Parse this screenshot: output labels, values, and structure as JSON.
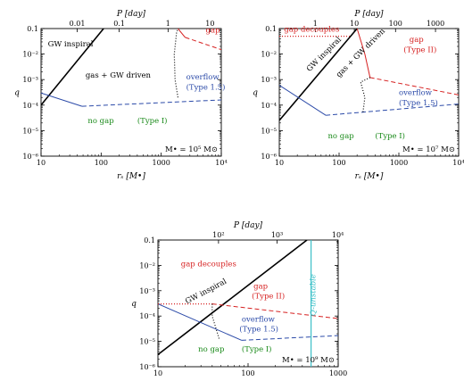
{
  "colors": {
    "axis": "#000000",
    "gw": "#000000",
    "typeI": "#2b4aa8",
    "gap": "#d62020",
    "label_green": "#1a8a1a",
    "q_unstable": "#3cc0c8"
  },
  "chart_data": [
    {
      "type": "line",
      "mass_label": "M• = 10⁵ M⊙",
      "xlabel": "rₛ  [M•]",
      "ylabel": "q",
      "top_axis_label": "P  [day]",
      "xlog": true,
      "ylog": true,
      "xlim": [
        10,
        10000
      ],
      "ylim": [
        1e-06,
        0.1
      ],
      "x_ticks": [
        10,
        100,
        1000,
        10000
      ],
      "x_tick_labels": [
        "10",
        "100",
        "1000",
        "10⁴"
      ],
      "y_ticks": [
        1e-06,
        1e-05,
        0.0001,
        0.001,
        0.01,
        0.1
      ],
      "y_tick_labels": [
        "10⁻⁶",
        "10⁻⁵",
        "10⁻⁴",
        "10⁻³",
        "10⁻²",
        "0.1"
      ],
      "top_ticks": [
        {
          "label": "0.01",
          "x": 40
        },
        {
          "label": "0.1",
          "x": 200
        },
        {
          "label": "1",
          "x": 1300
        },
        {
          "label": "10",
          "x": 6500
        }
      ],
      "series": [
        {
          "style": "gw",
          "points": [
            [
              10,
              0.0001
            ],
            [
              110,
              0.1
            ]
          ]
        },
        {
          "style": "blue-solid",
          "points": [
            [
              10,
              0.0003
            ],
            [
              48,
              9e-05
            ]
          ]
        },
        {
          "style": "blue-dashed",
          "points": [
            [
              48,
              9e-05
            ],
            [
              10000,
              0.00016
            ]
          ]
        },
        {
          "style": "black-dotted",
          "points": [
            [
              1900,
              0.0002
            ],
            [
              1700,
              0.001
            ],
            [
              1650,
              0.01
            ],
            [
              1800,
              0.07
            ],
            [
              1900,
              0.1
            ]
          ]
        },
        {
          "style": "red-solid",
          "points": [
            [
              1900,
              0.1
            ],
            [
              2500,
              0.045
            ]
          ]
        },
        {
          "style": "red-dashed",
          "points": [
            [
              2500,
              0.045
            ],
            [
              10000,
              0.015
            ]
          ]
        }
      ],
      "annotations": [
        {
          "text": "GW inspiral",
          "x": 13,
          "y": 0.02,
          "color": "black"
        },
        {
          "text": "gas + GW driven",
          "x": 55,
          "y": 0.0012,
          "color": "black"
        },
        {
          "text": "overflow",
          "x": 2600,
          "y": 0.001,
          "color": "blue"
        },
        {
          "text": "(Type 1.5)",
          "x": 2600,
          "y": 0.0004,
          "color": "blue"
        },
        {
          "text": "gap",
          "x": 5500,
          "y": 0.07,
          "color": "red"
        },
        {
          "text": "no gap",
          "x": 60,
          "y": 2e-05,
          "color": "green"
        },
        {
          "text": "(Type I)",
          "x": 400,
          "y": 2e-05,
          "color": "green"
        }
      ]
    },
    {
      "type": "line",
      "mass_label": "M• = 10⁷ M⊙",
      "xlabel": "rₛ  [M•]",
      "ylabel": "q",
      "top_axis_label": "P  [day]",
      "xlog": true,
      "ylog": true,
      "xlim": [
        10,
        10000
      ],
      "ylim": [
        1e-06,
        0.1
      ],
      "x_ticks": [
        10,
        100,
        1000,
        10000
      ],
      "x_tick_labels": [
        "10",
        "100",
        "1000",
        "10⁴"
      ],
      "y_ticks": [
        1e-06,
        1e-05,
        0.0001,
        0.001,
        0.01,
        0.1
      ],
      "y_tick_labels": [
        "10⁻⁶",
        "10⁻⁵",
        "10⁻⁴",
        "10⁻³",
        "10⁻²",
        "0.1"
      ],
      "top_ticks": [
        {
          "label": "1",
          "x": 40
        },
        {
          "label": "10",
          "x": 180
        },
        {
          "label": "100",
          "x": 880
        },
        {
          "label": "1000",
          "x": 4100
        }
      ],
      "series": [
        {
          "style": "gw",
          "points": [
            [
              10,
              2.5e-05
            ],
            [
              200,
              0.1
            ]
          ]
        },
        {
          "style": "blue-solid",
          "points": [
            [
              10,
              0.0006
            ],
            [
              60,
              4e-05
            ]
          ]
        },
        {
          "style": "blue-dashed",
          "points": [
            [
              60,
              4e-05
            ],
            [
              10000,
              0.00011
            ]
          ]
        },
        {
          "style": "red-dotted",
          "points": [
            [
              10,
              0.05
            ],
            [
              150,
              0.05
            ]
          ]
        },
        {
          "style": "red-solid",
          "points": [
            [
              200,
              0.1
            ],
            [
              270,
              0.01
            ],
            [
              330,
              0.0012
            ]
          ]
        },
        {
          "style": "red-dashed",
          "points": [
            [
              330,
              0.0012
            ],
            [
              10000,
              0.00025
            ]
          ]
        },
        {
          "style": "black-dotted",
          "points": [
            [
              330,
              0.0012
            ],
            [
              230,
              0.0008
            ],
            [
              270,
              0.0002
            ],
            [
              250,
              5e-05
            ]
          ]
        }
      ],
      "annotations": [
        {
          "text": "gap decouples",
          "x": 12,
          "y": 0.075,
          "color": "red"
        },
        {
          "text": "GW inspiral",
          "x": 32,
          "y": 0.002,
          "color": "black",
          "rotate": -45
        },
        {
          "text": "gas + GW driven",
          "x": 100,
          "y": 0.0012,
          "color": "black",
          "rotate": -45
        },
        {
          "text": "gap",
          "x": 1500,
          "y": 0.03,
          "color": "red"
        },
        {
          "text": "(Type II)",
          "x": 1200,
          "y": 0.012,
          "color": "red"
        },
        {
          "text": "overflow",
          "x": 1000,
          "y": 0.00025,
          "color": "blue"
        },
        {
          "text": "(Type 1.5)",
          "x": 1000,
          "y": 0.0001,
          "color": "blue"
        },
        {
          "text": "no gap",
          "x": 65,
          "y": 5e-06,
          "color": "green"
        },
        {
          "text": "(Type I)",
          "x": 400,
          "y": 5e-06,
          "color": "green"
        }
      ]
    },
    {
      "type": "line",
      "mass_label": "M• = 10⁹ M⊙",
      "xlabel": "rₛ  [M•]",
      "ylabel": "q",
      "top_axis_label": "P  [day]",
      "xlog": true,
      "ylog": true,
      "xlim": [
        10,
        1000
      ],
      "ylim": [
        1e-06,
        0.1
      ],
      "x_ticks": [
        10,
        100,
        1000
      ],
      "x_tick_labels": [
        "10",
        "100",
        "1000"
      ],
      "y_ticks": [
        1e-06,
        1e-05,
        0.0001,
        0.001,
        0.01,
        0.1
      ],
      "y_tick_labels": [
        "10⁻⁶",
        "10⁻⁵",
        "10⁻⁴",
        "10⁻³",
        "10⁻²",
        "0.1"
      ],
      "top_ticks": [
        {
          "label": "10²",
          "x": 47
        },
        {
          "label": "10³",
          "x": 210
        },
        {
          "label": "10⁴",
          "x": 990
        }
      ],
      "series": [
        {
          "style": "gw",
          "points": [
            [
              10,
              3e-06
            ],
            [
              450,
              0.1
            ]
          ]
        },
        {
          "style": "blue-solid",
          "points": [
            [
              10,
              0.0003
            ],
            [
              85,
              1.1e-05
            ]
          ]
        },
        {
          "style": "blue-dashed",
          "points": [
            [
              85,
              1.1e-05
            ],
            [
              1000,
              1.7e-05
            ]
          ]
        },
        {
          "style": "red-dotted",
          "points": [
            [
              10,
              0.0003
            ],
            [
              40,
              0.0003
            ]
          ]
        },
        {
          "style": "red-dashed",
          "points": [
            [
              40,
              0.0003
            ],
            [
              1000,
              8e-05
            ]
          ]
        },
        {
          "style": "black-dotted",
          "points": [
            [
              40,
              0.0003
            ],
            [
              40,
              0.0001
            ],
            [
              48,
              1.2e-05
            ]
          ]
        },
        {
          "style": "cyan",
          "points": [
            [
              500,
              1e-06
            ],
            [
              500,
              0.1
            ]
          ]
        }
      ],
      "annotations": [
        {
          "text": "gap decouples",
          "x": 18,
          "y": 0.009,
          "color": "red"
        },
        {
          "text": "GW inspiral",
          "x": 21,
          "y": 0.0003,
          "color": "black",
          "rotate": -28
        },
        {
          "text": "gap",
          "x": 115,
          "y": 0.0012,
          "color": "red"
        },
        {
          "text": "(Type II)",
          "x": 110,
          "y": 0.0005,
          "color": "red"
        },
        {
          "text": "overflow",
          "x": 85,
          "y": 6e-05,
          "color": "blue"
        },
        {
          "text": "(Type 1.5)",
          "x": 80,
          "y": 2.5e-05,
          "color": "blue"
        },
        {
          "text": "no gap",
          "x": 28,
          "y": 4e-06,
          "color": "green"
        },
        {
          "text": "(Type I)",
          "x": 85,
          "y": 4e-06,
          "color": "green"
        },
        {
          "text": "Q-unstable",
          "x": 560,
          "y": 0.0001,
          "color": "cyan",
          "rotate": -90
        }
      ]
    }
  ]
}
